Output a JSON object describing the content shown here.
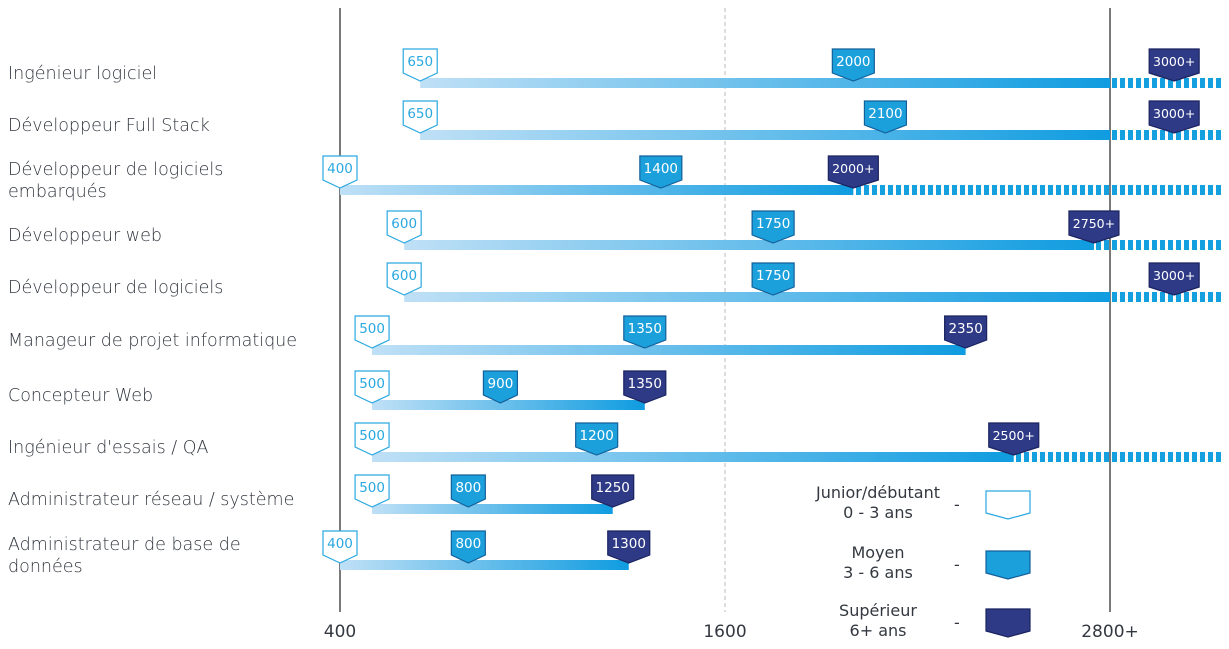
{
  "chart_data": {
    "type": "range-bar",
    "x_ticks": [
      "400",
      "1600",
      "2800+"
    ],
    "xlim": [
      400,
      2800
    ],
    "colors": {
      "junior": "#ffffff",
      "junior_border": "#2aa8e0",
      "medium": "#1ba0dc",
      "senior": "#2e3a86",
      "bar_light": "#b9ddf5",
      "bar_dark": "#149fdf",
      "axis": "#222222"
    },
    "legend": [
      {
        "label": "Junior/débutant",
        "sub": "0 - 3 ans",
        "level": "junior"
      },
      {
        "label": "Moyen",
        "sub": "3 - 6 ans",
        "level": "medium"
      },
      {
        "label": "Supérieur",
        "sub": "6+ ans",
        "level": "senior"
      }
    ],
    "rows": [
      {
        "role": "Ingénieur logiciel",
        "junior": 650,
        "junior_label": "650",
        "medium": 2000,
        "medium_label": "2000",
        "senior": 3000,
        "senior_label": "3000+",
        "open_ended": true
      },
      {
        "role": "Développeur Full Stack",
        "junior": 650,
        "junior_label": "650",
        "medium": 2100,
        "medium_label": "2100",
        "senior": 3000,
        "senior_label": "3000+",
        "open_ended": true
      },
      {
        "role": "Développeur de logiciels embarqués",
        "junior": 400,
        "junior_label": "400",
        "medium": 1400,
        "medium_label": "1400",
        "senior": 2000,
        "senior_label": "2000+",
        "open_ended": true
      },
      {
        "role": "Développeur web",
        "junior": 600,
        "junior_label": "600",
        "medium": 1750,
        "medium_label": "1750",
        "senior": 2750,
        "senior_label": "2750+",
        "open_ended": true
      },
      {
        "role": "Développeur de logiciels",
        "junior": 600,
        "junior_label": "600",
        "medium": 1750,
        "medium_label": "1750",
        "senior": 3000,
        "senior_label": "3000+",
        "open_ended": true
      },
      {
        "role": "Manageur de projet informatique",
        "junior": 500,
        "junior_label": "500",
        "medium": 1350,
        "medium_label": "1350",
        "senior": 2350,
        "senior_label": "2350",
        "open_ended": false
      },
      {
        "role": "Concepteur Web",
        "junior": 500,
        "junior_label": "500",
        "medium": 900,
        "medium_label": "900",
        "senior": 1350,
        "senior_label": "1350",
        "open_ended": false
      },
      {
        "role": "Ingénieur d'essais / QA",
        "junior": 500,
        "junior_label": "500",
        "medium": 1200,
        "medium_label": "1200",
        "senior": 2500,
        "senior_label": "2500+",
        "open_ended": true
      },
      {
        "role": "Administrateur réseau / système",
        "junior": 500,
        "junior_label": "500",
        "medium": 800,
        "medium_label": "800",
        "senior": 1250,
        "senior_label": "1250",
        "open_ended": false
      },
      {
        "role": "Administrateur de base de données",
        "junior": 400,
        "junior_label": "400",
        "medium": 800,
        "medium_label": "800",
        "senior": 1300,
        "senior_label": "1300",
        "open_ended": false
      }
    ]
  }
}
